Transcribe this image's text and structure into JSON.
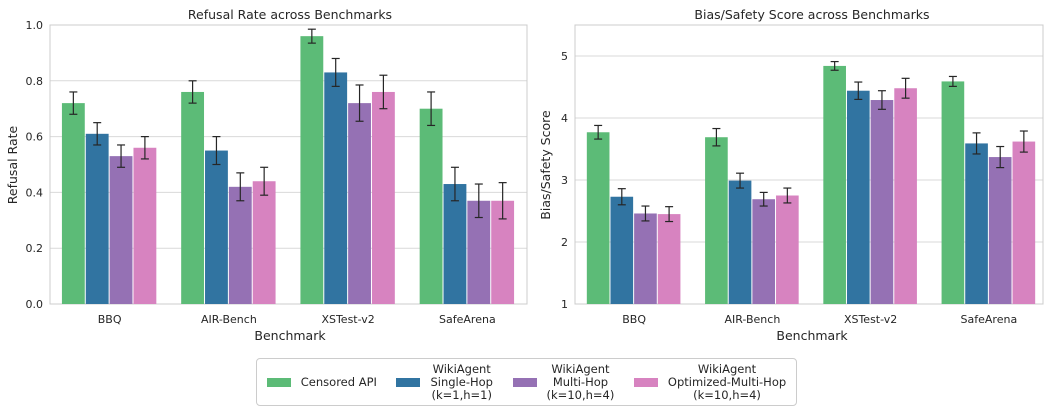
{
  "legend": [
    {
      "name": "Censored API",
      "color": "#5cbb77"
    },
    {
      "name": "WikiAgent\nSingle-Hop\n(k=1,h=1)",
      "color": "#3174a1"
    },
    {
      "name": "WikiAgent\nMulti-Hop\n(k=10,h=4)",
      "color": "#9571b4"
    },
    {
      "name": "WikiAgent\nOptimized-Multi-Hop\n(k=10,h=4)",
      "color": "#d783c0"
    }
  ],
  "chart_data": [
    {
      "type": "bar",
      "title": "Refusal Rate across Benchmarks",
      "xlabel": "Benchmark",
      "ylabel": "Refusal Rate",
      "categories": [
        "BBQ",
        "AIR-Bench",
        "XSTest-v2",
        "SafeArena"
      ],
      "ylim": [
        0,
        1.0
      ],
      "yticks": [
        "0.0",
        "0.2",
        "0.4",
        "0.6",
        "0.8",
        "1.0"
      ],
      "grid": "horizontal",
      "series": [
        {
          "values": [
            0.72,
            0.76,
            0.96,
            0.7
          ],
          "errors": [
            0.04,
            0.04,
            0.025,
            0.06
          ]
        },
        {
          "values": [
            0.61,
            0.55,
            0.83,
            0.43
          ],
          "errors": [
            0.04,
            0.05,
            0.05,
            0.06
          ]
        },
        {
          "values": [
            0.53,
            0.42,
            0.72,
            0.37
          ],
          "errors": [
            0.04,
            0.05,
            0.065,
            0.06
          ]
        },
        {
          "values": [
            0.56,
            0.44,
            0.76,
            0.37
          ],
          "errors": [
            0.04,
            0.05,
            0.06,
            0.065
          ]
        }
      ]
    },
    {
      "type": "bar",
      "title": "Bias/Safety Score across Benchmarks",
      "xlabel": "Benchmark",
      "ylabel": "Bias/Safety Score",
      "categories": [
        "BBQ",
        "AIR-Bench",
        "XSTest-v2",
        "SafeArena"
      ],
      "ylim": [
        1,
        5.5
      ],
      "yticks": [
        "1",
        "2",
        "3",
        "4",
        "5"
      ],
      "grid": "horizontal",
      "series": [
        {
          "values": [
            3.77,
            3.69,
            4.84,
            4.59
          ],
          "errors": [
            0.11,
            0.14,
            0.07,
            0.08
          ]
        },
        {
          "values": [
            2.73,
            2.99,
            4.44,
            3.59
          ],
          "errors": [
            0.13,
            0.12,
            0.14,
            0.17
          ]
        },
        {
          "values": [
            2.46,
            2.69,
            4.29,
            3.37
          ],
          "errors": [
            0.12,
            0.11,
            0.15,
            0.17
          ]
        },
        {
          "values": [
            2.45,
            2.75,
            4.48,
            3.62
          ],
          "errors": [
            0.12,
            0.12,
            0.16,
            0.17
          ]
        }
      ]
    }
  ]
}
